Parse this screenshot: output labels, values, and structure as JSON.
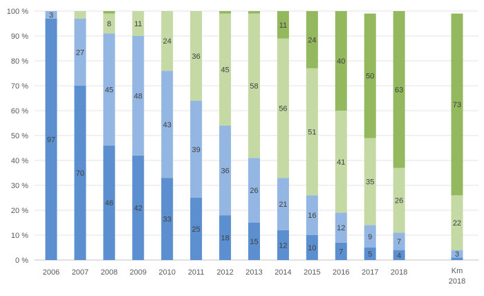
{
  "chart_data": {
    "type": "bar",
    "stacked": "percent",
    "title": "",
    "xlabel": "",
    "ylabel": "",
    "ylim": [
      0,
      100
    ],
    "y_ticks": [
      "0 %",
      "10 %",
      "20 %",
      "30 %",
      "40 %",
      "50 %",
      "60 %",
      "70 %",
      "80 %",
      "90 %",
      "100 %"
    ],
    "grid": true,
    "legend": "none",
    "categories": [
      {
        "line1": "2006",
        "line2": ""
      },
      {
        "line1": "2007",
        "line2": ""
      },
      {
        "line1": "2008",
        "line2": ""
      },
      {
        "line1": "2009",
        "line2": ""
      },
      {
        "line1": "2010",
        "line2": ""
      },
      {
        "line1": "2011",
        "line2": ""
      },
      {
        "line1": "2012",
        "line2": ""
      },
      {
        "line1": "2013",
        "line2": ""
      },
      {
        "line1": "2014",
        "line2": ""
      },
      {
        "line1": "2015",
        "line2": ""
      },
      {
        "line1": "2016",
        "line2": ""
      },
      {
        "line1": "2017",
        "line2": ""
      },
      {
        "line1": "2018",
        "line2": ""
      },
      {
        "line1": "",
        "line2": ""
      },
      {
        "line1": "Km",
        "line2": "2018"
      }
    ],
    "series": [
      {
        "name": "series-1",
        "color": "#5b8fd0",
        "values": [
          97,
          70,
          46,
          42,
          33,
          25,
          18,
          15,
          12,
          10,
          7,
          5,
          4,
          null,
          1
        ]
      },
      {
        "name": "series-2",
        "color": "#94b6e2",
        "values": [
          3,
          27,
          45,
          48,
          43,
          39,
          36,
          26,
          21,
          16,
          12,
          9,
          7,
          null,
          3
        ]
      },
      {
        "name": "series-3",
        "color": "#c4d9a3",
        "values": [
          0,
          3,
          8,
          11,
          24,
          36,
          45,
          58,
          56,
          51,
          41,
          35,
          26,
          null,
          22
        ]
      },
      {
        "name": "series-4",
        "color": "#94b85e",
        "values": [
          0,
          0,
          1,
          0,
          0,
          0,
          1,
          1,
          11,
          24,
          40,
          50,
          63,
          null,
          73
        ]
      }
    ],
    "data_labels": [
      [
        "97",
        "70",
        "46",
        "42",
        "33",
        "25",
        "18",
        "15",
        "12",
        "10",
        "7",
        "5",
        "4",
        "",
        ""
      ],
      [
        "3",
        "27",
        "45",
        "48",
        "43",
        "39",
        "36",
        "26",
        "21",
        "16",
        "12",
        "9",
        "7",
        "",
        "3"
      ],
      [
        "",
        "",
        "8",
        "11",
        "24",
        "36",
        "45",
        "58",
        "56",
        "51",
        "41",
        "35",
        "26",
        "",
        "22"
      ],
      [
        "",
        "",
        "",
        "",
        "",
        "",
        "",
        "",
        "11",
        "24",
        "40",
        "50",
        "63",
        "",
        "73"
      ]
    ]
  }
}
